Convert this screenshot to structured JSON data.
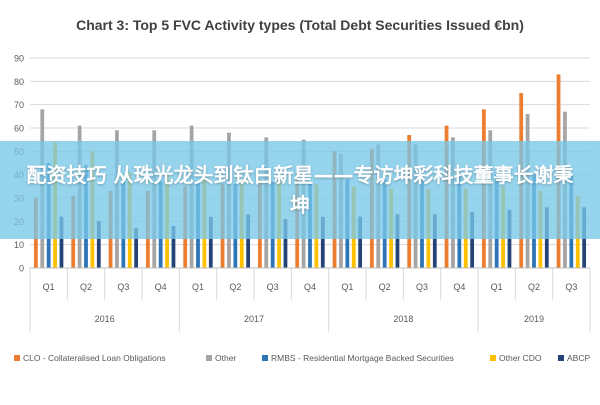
{
  "chart_data": {
    "type": "bar",
    "title": "Chart 3: Top 5 FVC Activity types (Total Debt Securities Issued €bn)",
    "xlabel": "",
    "ylabel": "",
    "ylim": [
      0,
      90
    ],
    "yticks": [
      0,
      10,
      20,
      30,
      40,
      50,
      60,
      70,
      80,
      90
    ],
    "grid": true,
    "legend_position": "bottom",
    "categories": [
      "Q1",
      "Q2",
      "Q3",
      "Q4",
      "Q1",
      "Q2",
      "Q3",
      "Q4",
      "Q1",
      "Q2",
      "Q3",
      "Q4",
      "Q1",
      "Q2",
      "Q3"
    ],
    "year_groups": [
      {
        "label": "2016",
        "count": 4
      },
      {
        "label": "2017",
        "count": 4
      },
      {
        "label": "2018",
        "count": 4
      },
      {
        "label": "2019",
        "count": 3
      }
    ],
    "series": [
      {
        "name": "CLO - Collateralised Loan Obligations",
        "color": "#ED7D31",
        "values": [
          30,
          31,
          33,
          33,
          35,
          36,
          38,
          40,
          50,
          51,
          57,
          61,
          68,
          75,
          83
        ]
      },
      {
        "name": "Other",
        "color": "#A5A5A5",
        "values": [
          68,
          61,
          59,
          59,
          61,
          58,
          56,
          55,
          49,
          53,
          53,
          56,
          59,
          66,
          67
        ]
      },
      {
        "name": "RMBS - Residential Mortgage Backed Securities",
        "color": "#2E75B6",
        "values": [
          45,
          44,
          37,
          37,
          37,
          36,
          37,
          36,
          38,
          38,
          40,
          40,
          40,
          40,
          40
        ]
      },
      {
        "name": "Other CDO",
        "color": "#FFC000",
        "values": [
          54,
          50,
          41,
          40,
          39,
          38,
          38,
          36,
          35,
          34,
          34,
          34,
          35,
          33,
          31
        ]
      },
      {
        "name": "ABCP",
        "color": "#264478",
        "values": [
          22,
          20,
          17,
          18,
          22,
          23,
          21,
          22,
          22,
          23,
          23,
          24,
          25,
          26,
          26
        ]
      }
    ]
  },
  "overlay": {
    "text": "配资技巧 从珠光龙头到钛白新星——专访坤彩科技董事长谢秉坤"
  }
}
